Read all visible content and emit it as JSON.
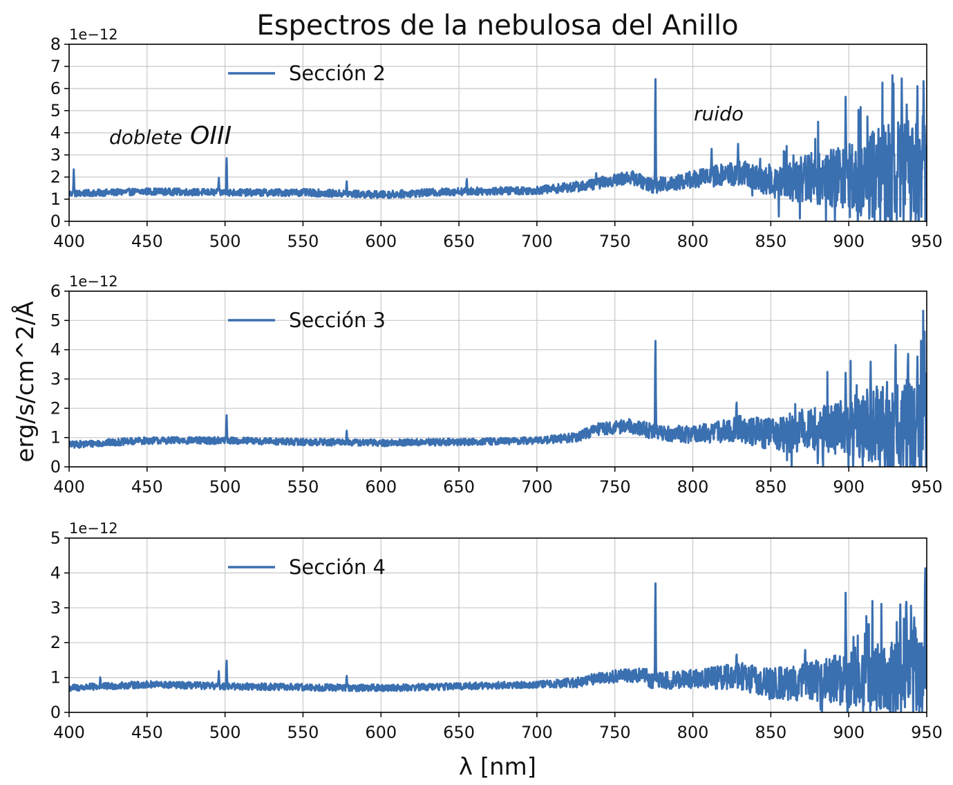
{
  "title": "Espectros de la nebulosa del Anillo",
  "xlabel": "λ [nm]",
  "ylabel": "erg/s/cm^2/Å",
  "colors": {
    "line": "#3a6fb0",
    "grid": "#c8c8c8",
    "axis": "#000000"
  },
  "annotations": {
    "doblete_prefix": "doblete",
    "doblete_species": "OIII",
    "noise": "ruido"
  },
  "chart_data": [
    {
      "type": "line",
      "series": [
        {
          "name": "Sección 2"
        }
      ],
      "legend": "upper-left",
      "grid": true,
      "xlim": [
        400,
        950
      ],
      "ylim": [
        0,
        8
      ],
      "y_scale_label": "1e−12",
      "x_ticks": [
        "400",
        "450",
        "500",
        "550",
        "600",
        "650",
        "700",
        "750",
        "800",
        "850",
        "900",
        "950"
      ],
      "y_ticks": [
        "0",
        "1",
        "2",
        "3",
        "4",
        "5",
        "6",
        "7",
        "8"
      ],
      "baseline": [
        [
          400,
          1.25
        ],
        [
          450,
          1.35
        ],
        [
          500,
          1.3
        ],
        [
          550,
          1.3
        ],
        [
          600,
          1.2
        ],
        [
          650,
          1.35
        ],
        [
          700,
          1.4
        ],
        [
          730,
          1.6
        ],
        [
          760,
          2.0
        ],
        [
          775,
          1.6
        ],
        [
          800,
          1.9
        ],
        [
          830,
          2.2
        ],
        [
          850,
          1.8
        ],
        [
          870,
          1.9
        ],
        [
          900,
          2.0
        ],
        [
          950,
          2.2
        ]
      ],
      "noise": [
        [
          400,
          0.15
        ],
        [
          700,
          0.18
        ],
        [
          760,
          0.3
        ],
        [
          800,
          0.4
        ],
        [
          850,
          0.7
        ],
        [
          880,
          1.2
        ],
        [
          900,
          1.6
        ],
        [
          920,
          2.2
        ],
        [
          950,
          2.6
        ]
      ],
      "peaks": [
        [
          403,
          2.4
        ],
        [
          404.5,
          0.2
        ],
        [
          496,
          2.0
        ],
        [
          501,
          3.1
        ],
        [
          578,
          1.9
        ],
        [
          655,
          2.0
        ],
        [
          738,
          2.2
        ],
        [
          776,
          7.2
        ],
        [
          812,
          3.4
        ],
        [
          829,
          3.5
        ],
        [
          872,
          3.2
        ],
        [
          898,
          5.8
        ],
        [
          916,
          4.4
        ],
        [
          928,
          6.6
        ],
        [
          934,
          6.9
        ],
        [
          944,
          6.5
        ],
        [
          948,
          7.0
        ]
      ]
    },
    {
      "type": "line",
      "series": [
        {
          "name": "Sección 3"
        }
      ],
      "legend": "upper-left",
      "grid": true,
      "xlim": [
        400,
        950
      ],
      "ylim": [
        0,
        6
      ],
      "y_scale_label": "1e−12",
      "x_ticks": [
        "400",
        "450",
        "500",
        "550",
        "600",
        "650",
        "700",
        "750",
        "800",
        "850",
        "900",
        "950"
      ],
      "y_ticks": [
        "0",
        "1",
        "2",
        "3",
        "4",
        "5",
        "6"
      ],
      "baseline": [
        [
          400,
          0.75
        ],
        [
          450,
          0.9
        ],
        [
          500,
          0.9
        ],
        [
          550,
          0.85
        ],
        [
          600,
          0.82
        ],
        [
          650,
          0.85
        ],
        [
          700,
          0.9
        ],
        [
          725,
          1.0
        ],
        [
          740,
          1.3
        ],
        [
          760,
          1.4
        ],
        [
          775,
          1.2
        ],
        [
          800,
          1.1
        ],
        [
          830,
          1.3
        ],
        [
          850,
          1.1
        ],
        [
          880,
          1.3
        ],
        [
          900,
          1.4
        ],
        [
          950,
          1.5
        ]
      ],
      "noise": [
        [
          400,
          0.12
        ],
        [
          700,
          0.12
        ],
        [
          760,
          0.25
        ],
        [
          800,
          0.3
        ],
        [
          850,
          0.55
        ],
        [
          880,
          0.8
        ],
        [
          900,
          1.0
        ],
        [
          920,
          1.4
        ],
        [
          950,
          1.8
        ]
      ],
      "peaks": [
        [
          501,
          1.9
        ],
        [
          578,
          1.3
        ],
        [
          776,
          4.8
        ],
        [
          828,
          2.4
        ],
        [
          898,
          3.3
        ],
        [
          914,
          3.7
        ],
        [
          930,
          4.6
        ],
        [
          938,
          4.4
        ],
        [
          944,
          4.0
        ],
        [
          948,
          3.6
        ]
      ]
    },
    {
      "type": "line",
      "series": [
        {
          "name": "Sección 4"
        }
      ],
      "legend": "upper-left",
      "grid": true,
      "xlim": [
        400,
        950
      ],
      "ylim": [
        0,
        5
      ],
      "y_scale_label": "1e−12",
      "x_ticks": [
        "400",
        "450",
        "500",
        "550",
        "600",
        "650",
        "700",
        "750",
        "800",
        "850",
        "900",
        "950"
      ],
      "y_ticks": [
        "0",
        "1",
        "2",
        "3",
        "4",
        "5"
      ],
      "baseline": [
        [
          400,
          0.7
        ],
        [
          450,
          0.8
        ],
        [
          500,
          0.75
        ],
        [
          550,
          0.72
        ],
        [
          600,
          0.7
        ],
        [
          650,
          0.75
        ],
        [
          700,
          0.8
        ],
        [
          725,
          0.85
        ],
        [
          740,
          1.0
        ],
        [
          770,
          1.1
        ],
        [
          772,
          0.9
        ],
        [
          800,
          0.95
        ],
        [
          830,
          1.05
        ],
        [
          850,
          0.8
        ],
        [
          880,
          0.9
        ],
        [
          900,
          0.95
        ],
        [
          950,
          1.2
        ]
      ],
      "noise": [
        [
          400,
          0.1
        ],
        [
          700,
          0.1
        ],
        [
          760,
          0.2
        ],
        [
          800,
          0.28
        ],
        [
          850,
          0.45
        ],
        [
          880,
          0.6
        ],
        [
          900,
          0.8
        ],
        [
          930,
          1.1
        ],
        [
          950,
          1.4
        ]
      ],
      "peaks": [
        [
          420,
          1.05
        ],
        [
          496,
          1.2
        ],
        [
          501,
          1.6
        ],
        [
          578,
          1.1
        ],
        [
          720,
          1.0
        ],
        [
          776,
          4.15
        ],
        [
          828,
          1.8
        ],
        [
          872,
          2.0
        ],
        [
          898,
          3.55
        ],
        [
          912,
          2.0
        ],
        [
          933,
          3.3
        ],
        [
          937,
          3.5
        ],
        [
          942,
          2.8
        ],
        [
          949,
          4.8
        ]
      ]
    }
  ]
}
